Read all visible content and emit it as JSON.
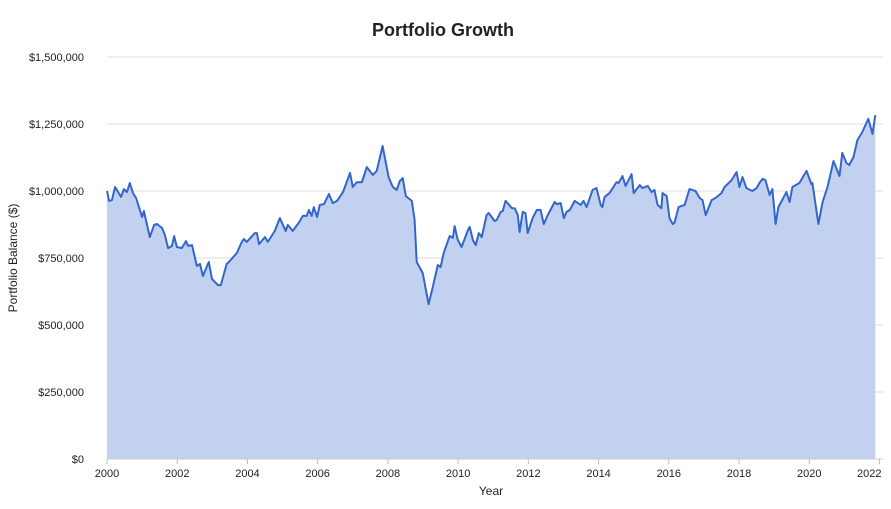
{
  "chart_data": {
    "type": "area",
    "title": "Portfolio Growth",
    "xlabel": "Year",
    "ylabel": "Portfolio Balance ($)",
    "xlim": [
      2000,
      2022.1
    ],
    "ylim": [
      0,
      1500000
    ],
    "grid": true,
    "legend": "none",
    "x_ticks": [
      2000,
      2002,
      2004,
      2006,
      2008,
      2010,
      2012,
      2014,
      2016,
      2018,
      2020,
      2022
    ],
    "x_tick_labels": [
      "2000",
      "2002",
      "2004",
      "2006",
      "2008",
      "2010",
      "2012",
      "2014",
      "2016",
      "2018",
      "2020",
      "2022"
    ],
    "y_ticks": [
      0,
      250000,
      500000,
      750000,
      1000000,
      1250000,
      1500000
    ],
    "y_tick_labels": [
      "$0",
      "$250,000",
      "$500,000",
      "$750,000",
      "$1,000,000",
      "$1,250,000",
      "$1,500,000"
    ],
    "colors": {
      "line": "#3366cc",
      "fill": "#c2d1ef",
      "grid": "#dddddd"
    },
    "series": [
      {
        "name": "Portfolio Balance",
        "points": [
          [
            2000.0,
            1000000
          ],
          [
            2000.06,
            963000
          ],
          [
            2000.14,
            966000
          ],
          [
            2000.23,
            1015000
          ],
          [
            2000.4,
            978000
          ],
          [
            2000.48,
            1007000
          ],
          [
            2000.57,
            996000
          ],
          [
            2000.65,
            1030000
          ],
          [
            2000.74,
            992000
          ],
          [
            2000.83,
            974000
          ],
          [
            2001.0,
            903000
          ],
          [
            2001.05,
            925000
          ],
          [
            2001.22,
            828000
          ],
          [
            2001.34,
            873000
          ],
          [
            2001.42,
            877000
          ],
          [
            2001.57,
            862000
          ],
          [
            2001.65,
            836000
          ],
          [
            2001.74,
            787000
          ],
          [
            2001.85,
            795000
          ],
          [
            2001.91,
            832000
          ],
          [
            2001.99,
            791000
          ],
          [
            2002.13,
            787000
          ],
          [
            2002.25,
            813000
          ],
          [
            2002.31,
            795000
          ],
          [
            2002.42,
            798000
          ],
          [
            2002.56,
            720000
          ],
          [
            2002.65,
            728000
          ],
          [
            2002.73,
            683000
          ],
          [
            2002.9,
            735000
          ],
          [
            2002.99,
            672000
          ],
          [
            2003.16,
            649000
          ],
          [
            2003.24,
            649000
          ],
          [
            2003.41,
            728000
          ],
          [
            2003.5,
            739000
          ],
          [
            2003.7,
            769000
          ],
          [
            2003.84,
            810000
          ],
          [
            2003.9,
            821000
          ],
          [
            2003.98,
            810000
          ],
          [
            2004.21,
            843000
          ],
          [
            2004.27,
            843000
          ],
          [
            2004.33,
            802000
          ],
          [
            2004.5,
            828000
          ],
          [
            2004.58,
            810000
          ],
          [
            2004.78,
            851000
          ],
          [
            2004.92,
            899000
          ],
          [
            2005.09,
            851000
          ],
          [
            2005.15,
            873000
          ],
          [
            2005.29,
            851000
          ],
          [
            2005.46,
            881000
          ],
          [
            2005.58,
            907000
          ],
          [
            2005.69,
            907000
          ],
          [
            2005.75,
            929000
          ],
          [
            2005.83,
            907000
          ],
          [
            2005.89,
            940000
          ],
          [
            2005.98,
            903000
          ],
          [
            2006.06,
            948000
          ],
          [
            2006.18,
            951000
          ],
          [
            2006.32,
            989000
          ],
          [
            2006.43,
            955000
          ],
          [
            2006.55,
            963000
          ],
          [
            2006.72,
            996000
          ],
          [
            2006.92,
            1067000
          ],
          [
            2007.0,
            1015000
          ],
          [
            2007.11,
            1033000
          ],
          [
            2007.26,
            1033000
          ],
          [
            2007.4,
            1089000
          ],
          [
            2007.57,
            1060000
          ],
          [
            2007.68,
            1075000
          ],
          [
            2007.85,
            1168000
          ],
          [
            2008.02,
            1052000
          ],
          [
            2008.14,
            1015000
          ],
          [
            2008.25,
            1004000
          ],
          [
            2008.34,
            1037000
          ],
          [
            2008.42,
            1048000
          ],
          [
            2008.51,
            981000
          ],
          [
            2008.68,
            963000
          ],
          [
            2008.76,
            892000
          ],
          [
            2008.82,
            735000
          ],
          [
            2008.99,
            694000
          ],
          [
            2009.16,
            578000
          ],
          [
            2009.28,
            642000
          ],
          [
            2009.42,
            724000
          ],
          [
            2009.5,
            716000
          ],
          [
            2009.59,
            769000
          ],
          [
            2009.76,
            832000
          ],
          [
            2009.85,
            825000
          ],
          [
            2009.9,
            869000
          ],
          [
            2009.99,
            817000
          ],
          [
            2010.1,
            791000
          ],
          [
            2010.27,
            851000
          ],
          [
            2010.33,
            866000
          ],
          [
            2010.42,
            817000
          ],
          [
            2010.5,
            798000
          ],
          [
            2010.59,
            843000
          ],
          [
            2010.67,
            828000
          ],
          [
            2010.81,
            910000
          ],
          [
            2010.87,
            918000
          ],
          [
            2011.04,
            888000
          ],
          [
            2011.1,
            892000
          ],
          [
            2011.21,
            922000
          ],
          [
            2011.27,
            925000
          ],
          [
            2011.35,
            963000
          ],
          [
            2011.41,
            955000
          ],
          [
            2011.53,
            936000
          ],
          [
            2011.61,
            936000
          ],
          [
            2011.7,
            910000
          ],
          [
            2011.75,
            847000
          ],
          [
            2011.84,
            922000
          ],
          [
            2011.92,
            918000
          ],
          [
            2011.98,
            843000
          ],
          [
            2012.12,
            899000
          ],
          [
            2012.24,
            929000
          ],
          [
            2012.35,
            929000
          ],
          [
            2012.44,
            877000
          ],
          [
            2012.55,
            910000
          ],
          [
            2012.75,
            959000
          ],
          [
            2012.81,
            951000
          ],
          [
            2012.92,
            955000
          ],
          [
            2013.01,
            899000
          ],
          [
            2013.09,
            922000
          ],
          [
            2013.18,
            929000
          ],
          [
            2013.32,
            963000
          ],
          [
            2013.49,
            948000
          ],
          [
            2013.57,
            963000
          ],
          [
            2013.66,
            940000
          ],
          [
            2013.83,
            1004000
          ],
          [
            2013.94,
            1011000
          ],
          [
            2014.06,
            948000
          ],
          [
            2014.11,
            940000
          ],
          [
            2014.17,
            978000
          ],
          [
            2014.31,
            992000
          ],
          [
            2014.51,
            1033000
          ],
          [
            2014.57,
            1030000
          ],
          [
            2014.68,
            1056000
          ],
          [
            2014.77,
            1019000
          ],
          [
            2014.94,
            1063000
          ],
          [
            2015.0,
            992000
          ],
          [
            2015.17,
            1022000
          ],
          [
            2015.25,
            1011000
          ],
          [
            2015.4,
            1019000
          ],
          [
            2015.51,
            996000
          ],
          [
            2015.59,
            1004000
          ],
          [
            2015.68,
            948000
          ],
          [
            2015.79,
            936000
          ],
          [
            2015.82,
            992000
          ],
          [
            2015.94,
            981000
          ],
          [
            2016.02,
            899000
          ],
          [
            2016.11,
            877000
          ],
          [
            2016.16,
            881000
          ],
          [
            2016.28,
            940000
          ],
          [
            2016.45,
            948000
          ],
          [
            2016.59,
            1007000
          ],
          [
            2016.76,
            1000000
          ],
          [
            2016.88,
            974000
          ],
          [
            2016.96,
            966000
          ],
          [
            2017.05,
            910000
          ],
          [
            2017.22,
            966000
          ],
          [
            2017.33,
            974000
          ],
          [
            2017.5,
            992000
          ],
          [
            2017.59,
            1015000
          ],
          [
            2017.79,
            1041000
          ],
          [
            2017.93,
            1071000
          ],
          [
            2018.01,
            1015000
          ],
          [
            2018.1,
            1052000
          ],
          [
            2018.21,
            1011000
          ],
          [
            2018.38,
            1000000
          ],
          [
            2018.5,
            1011000
          ],
          [
            2018.58,
            1030000
          ],
          [
            2018.67,
            1045000
          ],
          [
            2018.75,
            1041000
          ],
          [
            2018.87,
            985000
          ],
          [
            2018.95,
            1007000
          ],
          [
            2019.04,
            877000
          ],
          [
            2019.12,
            940000
          ],
          [
            2019.35,
            996000
          ],
          [
            2019.44,
            959000
          ],
          [
            2019.52,
            1015000
          ],
          [
            2019.72,
            1030000
          ],
          [
            2019.92,
            1075000
          ],
          [
            2020.06,
            1026000
          ],
          [
            2020.09,
            1030000
          ],
          [
            2020.26,
            877000
          ],
          [
            2020.38,
            959000
          ],
          [
            2020.52,
            1015000
          ],
          [
            2020.69,
            1112000
          ],
          [
            2020.86,
            1056000
          ],
          [
            2020.94,
            1142000
          ],
          [
            2021.06,
            1104000
          ],
          [
            2021.14,
            1097000
          ],
          [
            2021.26,
            1127000
          ],
          [
            2021.37,
            1190000
          ],
          [
            2021.51,
            1220000
          ],
          [
            2021.68,
            1269000
          ],
          [
            2021.8,
            1213000
          ],
          [
            2021.88,
            1283000
          ]
        ]
      }
    ]
  }
}
